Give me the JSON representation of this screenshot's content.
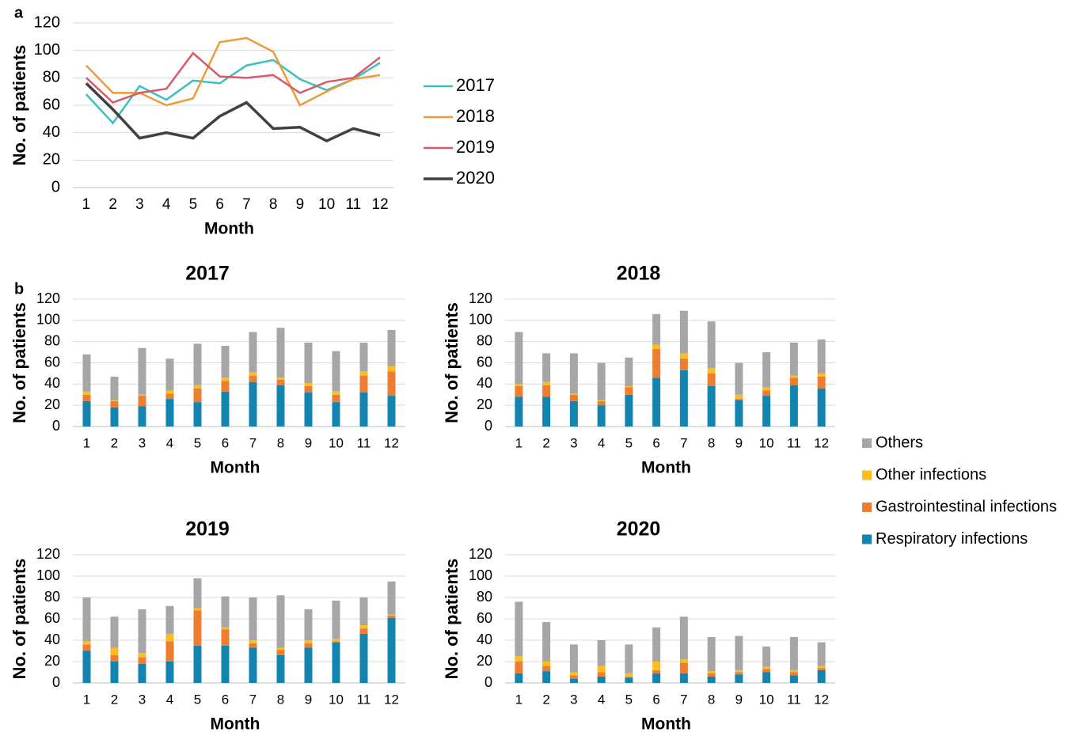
{
  "chart_data": [
    {
      "type": "line",
      "panel": "a",
      "xlabel": "Month",
      "ylabel": "No. of patients",
      "categories": [
        "1",
        "2",
        "3",
        "4",
        "5",
        "6",
        "7",
        "8",
        "9",
        "10",
        "11",
        "12"
      ],
      "series": [
        {
          "name": "2017",
          "color": "#3bbfc0",
          "values": [
            68,
            47,
            74,
            64,
            78,
            76,
            89,
            93,
            79,
            71,
            79,
            91
          ]
        },
        {
          "name": "2018",
          "color": "#ef9a3a",
          "values": [
            89,
            69,
            69,
            60,
            65,
            106,
            109,
            99,
            60,
            70,
            79,
            82
          ]
        },
        {
          "name": "2019",
          "color": "#d85a6a",
          "values": [
            80,
            62,
            69,
            72,
            98,
            81,
            80,
            82,
            69,
            77,
            80,
            95
          ]
        },
        {
          "name": "2020",
          "color": "#404040",
          "values": [
            76,
            57,
            36,
            40,
            36,
            52,
            62,
            43,
            44,
            34,
            43,
            38
          ]
        }
      ],
      "ylim": [
        0,
        120
      ],
      "yticks": [
        0,
        20,
        40,
        60,
        80,
        100,
        120
      ],
      "grid": true,
      "legend": "right"
    },
    {
      "type": "bar",
      "stacked": true,
      "panel": "b",
      "title": "2017",
      "xlabel": "Month",
      "ylabel": "No. of patients",
      "categories": [
        "1",
        "2",
        "3",
        "4",
        "5",
        "6",
        "7",
        "8",
        "9",
        "10",
        "11",
        "12"
      ],
      "series": [
        {
          "name": "Respiratory infections",
          "color": "#1383b0",
          "values": [
            24,
            18,
            19,
            26,
            23,
            33,
            42,
            39,
            32,
            23,
            32,
            29
          ]
        },
        {
          "name": "Gastrointestinal infections",
          "color": "#ed7d31",
          "values": [
            6,
            6,
            10,
            5,
            13,
            10,
            6,
            5,
            6,
            7,
            16,
            23
          ]
        },
        {
          "name": "Other infections",
          "color": "#fdbd1e",
          "values": [
            3,
            1,
            1,
            3,
            3,
            3,
            3,
            2,
            3,
            3,
            4,
            5
          ]
        },
        {
          "name": "Others",
          "color": "#a6a6a6",
          "values": [
            35,
            22,
            44,
            30,
            39,
            30,
            38,
            47,
            38,
            38,
            27,
            34
          ]
        }
      ],
      "ylim": [
        0,
        120
      ],
      "yticks": [
        0,
        20,
        40,
        60,
        80,
        100,
        120
      ],
      "grid": true,
      "legend": "right"
    },
    {
      "type": "bar",
      "stacked": true,
      "title": "2018",
      "xlabel": "Month",
      "ylabel": "No. of patients",
      "categories": [
        "1",
        "2",
        "3",
        "4",
        "5",
        "6",
        "7",
        "8",
        "9",
        "10",
        "11",
        "12"
      ],
      "series": [
        {
          "name": "Respiratory infections",
          "color": "#1383b0",
          "values": [
            28,
            28,
            24,
            20,
            30,
            46,
            53,
            38,
            25,
            29,
            39,
            36
          ]
        },
        {
          "name": "Gastrointestinal infections",
          "color": "#ed7d31",
          "values": [
            10,
            11,
            6,
            4,
            7,
            27,
            11,
            12,
            1,
            5,
            7,
            11
          ]
        },
        {
          "name": "Other infections",
          "color": "#fdbd1e",
          "values": [
            2,
            3,
            1,
            1,
            1,
            4,
            5,
            5,
            4,
            3,
            2,
            3
          ]
        },
        {
          "name": "Others",
          "color": "#a6a6a6",
          "values": [
            49,
            27,
            38,
            35,
            27,
            29,
            40,
            44,
            30,
            33,
            31,
            32
          ]
        }
      ],
      "ylim": [
        0,
        120
      ],
      "yticks": [
        0,
        20,
        40,
        60,
        80,
        100,
        120
      ],
      "grid": true
    },
    {
      "type": "bar",
      "stacked": true,
      "title": "2019",
      "xlabel": "Month",
      "ylabel": "No. of patients",
      "categories": [
        "1",
        "2",
        "3",
        "4",
        "5",
        "6",
        "7",
        "8",
        "9",
        "10",
        "11",
        "12"
      ],
      "series": [
        {
          "name": "Respiratory infections",
          "color": "#1383b0",
          "values": [
            30,
            20,
            18,
            20,
            35,
            35,
            33,
            26,
            33,
            38,
            46,
            61
          ]
        },
        {
          "name": "Gastrointestinal infections",
          "color": "#ed7d31",
          "values": [
            6,
            6,
            6,
            19,
            33,
            15,
            4,
            5,
            4,
            1,
            5,
            2
          ]
        },
        {
          "name": "Other infections",
          "color": "#fdbd1e",
          "values": [
            3,
            7,
            4,
            7,
            2,
            2,
            3,
            2,
            3,
            2,
            3,
            1
          ]
        },
        {
          "name": "Others",
          "color": "#a6a6a6",
          "values": [
            41,
            29,
            41,
            26,
            28,
            29,
            40,
            49,
            29,
            36,
            26,
            31
          ]
        }
      ],
      "ylim": [
        0,
        120
      ],
      "yticks": [
        0,
        20,
        40,
        60,
        80,
        100,
        120
      ],
      "grid": true
    },
    {
      "type": "bar",
      "stacked": true,
      "title": "2020",
      "xlabel": "Month",
      "ylabel": "No. of patients",
      "categories": [
        "1",
        "2",
        "3",
        "4",
        "5",
        "6",
        "7",
        "8",
        "9",
        "10",
        "11",
        "12"
      ],
      "series": [
        {
          "name": "Respiratory infections",
          "color": "#1383b0",
          "values": [
            9,
            11,
            4,
            6,
            5,
            9,
            9,
            6,
            8,
            10,
            7,
            12
          ]
        },
        {
          "name": "Gastrointestinal infections",
          "color": "#ed7d31",
          "values": [
            11,
            5,
            3,
            4,
            1,
            3,
            10,
            3,
            2,
            3,
            3,
            2
          ]
        },
        {
          "name": "Other infections",
          "color": "#fdbd1e",
          "values": [
            5,
            4,
            3,
            6,
            3,
            8,
            3,
            2,
            2,
            2,
            2,
            2
          ]
        },
        {
          "name": "Others",
          "color": "#a6a6a6",
          "values": [
            51,
            37,
            26,
            24,
            27,
            32,
            40,
            32,
            32,
            19,
            31,
            22
          ]
        }
      ],
      "ylim": [
        0,
        120
      ],
      "yticks": [
        0,
        20,
        40,
        60,
        80,
        100,
        120
      ],
      "grid": true
    }
  ]
}
